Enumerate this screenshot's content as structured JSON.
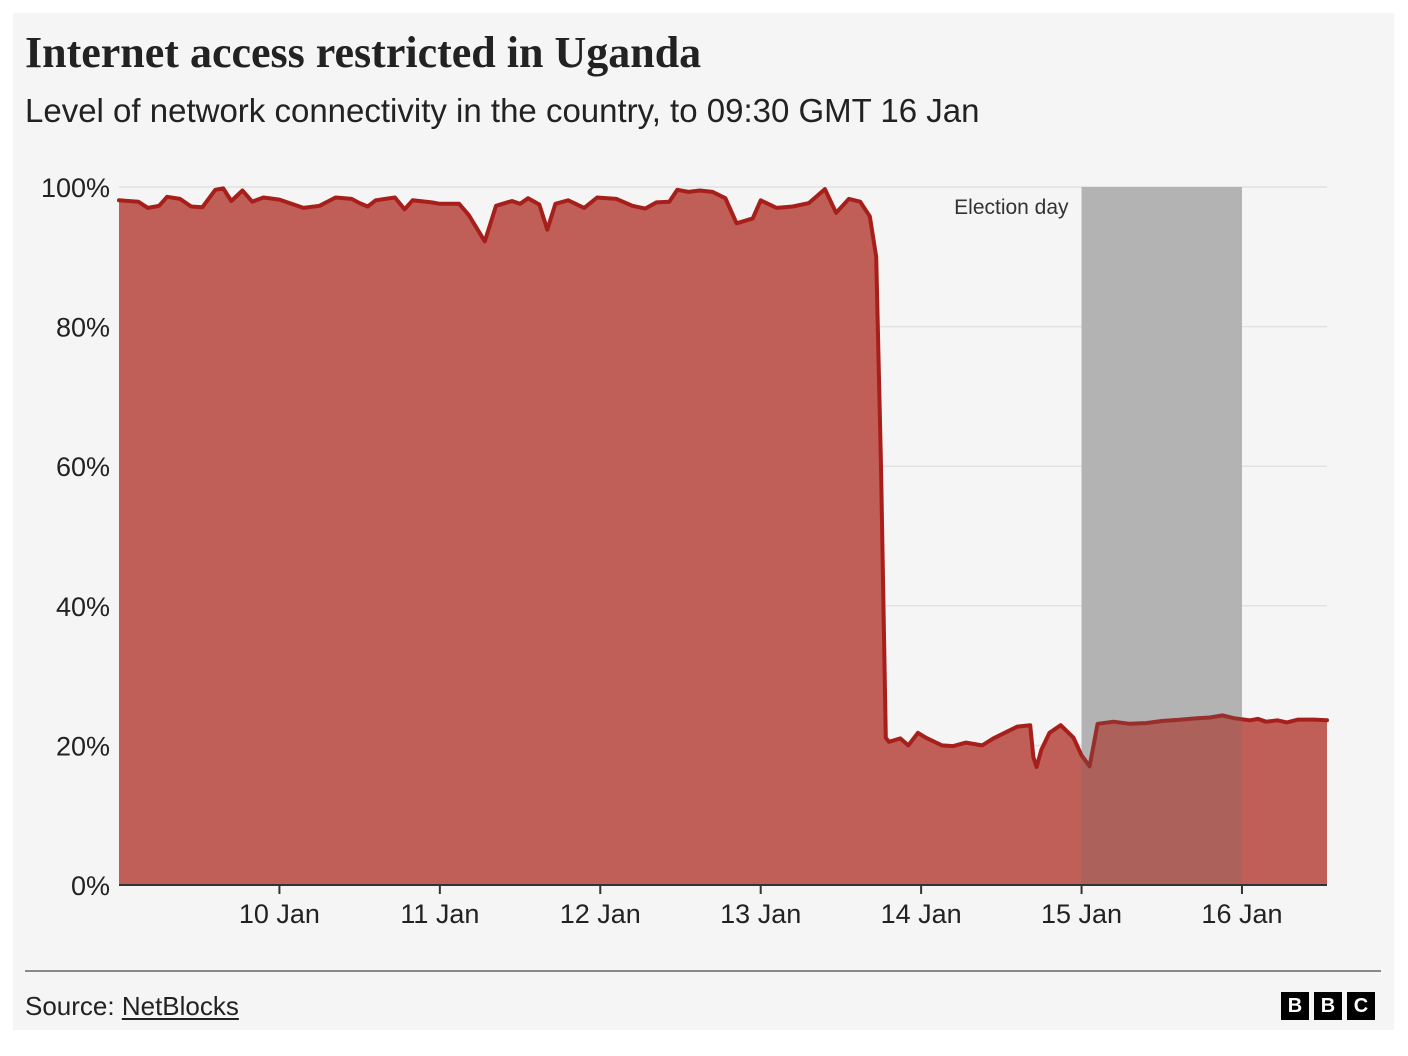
{
  "title": "Internet access restricted in Uganda",
  "subtitle": "Level of network connectivity in the country, to 09:30 GMT 16 Jan",
  "source": {
    "label": "Source: ",
    "link_text": "NetBlocks"
  },
  "logo": {
    "letters": [
      "B",
      "B",
      "C"
    ]
  },
  "colors": {
    "area_fill": "#bf5f57",
    "line": "#a71f1a",
    "highlight_band": "#c8c8c8",
    "background": "#f5f5f5"
  },
  "chart_data": {
    "type": "area",
    "title": "Internet access restricted in Uganda",
    "subtitle": "Level of network connectivity in the country, to 09:30 GMT 16 Jan",
    "xlabel": "",
    "ylabel": "",
    "unit": "%",
    "xlim": [
      9.0,
      16.53
    ],
    "ylim": [
      0,
      100
    ],
    "x_ticks": [
      {
        "x": 10,
        "label": "10 Jan"
      },
      {
        "x": 11,
        "label": "11 Jan"
      },
      {
        "x": 12,
        "label": "12 Jan"
      },
      {
        "x": 13,
        "label": "13 Jan"
      },
      {
        "x": 14,
        "label": "14 Jan"
      },
      {
        "x": 15,
        "label": "15 Jan"
      },
      {
        "x": 16,
        "label": "16 Jan"
      }
    ],
    "y_ticks": [
      {
        "y": 0,
        "label": "0%"
      },
      {
        "y": 20,
        "label": "20%"
      },
      {
        "y": 40,
        "label": "40%"
      },
      {
        "y": 60,
        "label": "60%"
      },
      {
        "y": 80,
        "label": "80%"
      },
      {
        "y": 100,
        "label": "100%"
      }
    ],
    "grid": true,
    "legend": "none",
    "highlight": {
      "x_start": 15.0,
      "x_end": 16.0,
      "label": "Election day"
    },
    "series": [
      {
        "values": [
          [
            9.0,
            98.1
          ],
          [
            9.12,
            97.9
          ],
          [
            9.18,
            97.0
          ],
          [
            9.25,
            97.3
          ],
          [
            9.3,
            98.6
          ],
          [
            9.38,
            98.3
          ],
          [
            9.45,
            97.2
          ],
          [
            9.52,
            97.1
          ],
          [
            9.6,
            99.6
          ],
          [
            9.65,
            99.8
          ],
          [
            9.7,
            98.0
          ],
          [
            9.77,
            99.5
          ],
          [
            9.83,
            97.9
          ],
          [
            9.9,
            98.5
          ],
          [
            10.0,
            98.2
          ],
          [
            10.1,
            97.4
          ],
          [
            10.15,
            97.0
          ],
          [
            10.25,
            97.3
          ],
          [
            10.35,
            98.5
          ],
          [
            10.45,
            98.3
          ],
          [
            10.5,
            97.7
          ],
          [
            10.55,
            97.2
          ],
          [
            10.6,
            98.1
          ],
          [
            10.72,
            98.5
          ],
          [
            10.78,
            96.8
          ],
          [
            10.83,
            98.1
          ],
          [
            10.95,
            97.8
          ],
          [
            11.0,
            97.6
          ],
          [
            11.12,
            97.6
          ],
          [
            11.18,
            96.0
          ],
          [
            11.28,
            92.2
          ],
          [
            11.35,
            97.3
          ],
          [
            11.45,
            98.0
          ],
          [
            11.5,
            97.6
          ],
          [
            11.55,
            98.4
          ],
          [
            11.62,
            97.5
          ],
          [
            11.67,
            93.9
          ],
          [
            11.72,
            97.6
          ],
          [
            11.8,
            98.1
          ],
          [
            11.9,
            97.0
          ],
          [
            11.98,
            98.5
          ],
          [
            12.1,
            98.3
          ],
          [
            12.2,
            97.3
          ],
          [
            12.28,
            96.9
          ],
          [
            12.35,
            97.8
          ],
          [
            12.43,
            97.9
          ],
          [
            12.48,
            99.6
          ],
          [
            12.55,
            99.3
          ],
          [
            12.62,
            99.5
          ],
          [
            12.7,
            99.3
          ],
          [
            12.78,
            98.4
          ],
          [
            12.85,
            94.8
          ],
          [
            12.95,
            95.5
          ],
          [
            13.0,
            98.1
          ],
          [
            13.1,
            97.0
          ],
          [
            13.2,
            97.2
          ],
          [
            13.3,
            97.7
          ],
          [
            13.4,
            99.7
          ],
          [
            13.47,
            96.3
          ],
          [
            13.55,
            98.3
          ],
          [
            13.62,
            97.9
          ],
          [
            13.68,
            95.8
          ],
          [
            13.72,
            90.0
          ],
          [
            13.75,
            60.0
          ],
          [
            13.78,
            21.1
          ],
          [
            13.8,
            20.5
          ],
          [
            13.87,
            21.0
          ],
          [
            13.92,
            20.0
          ],
          [
            13.98,
            21.8
          ],
          [
            14.03,
            21.1
          ],
          [
            14.13,
            20.0
          ],
          [
            14.2,
            19.9
          ],
          [
            14.28,
            20.4
          ],
          [
            14.38,
            20.0
          ],
          [
            14.45,
            21.0
          ],
          [
            14.6,
            22.7
          ],
          [
            14.68,
            22.9
          ],
          [
            14.7,
            18.3
          ],
          [
            14.72,
            16.9
          ],
          [
            14.75,
            19.4
          ],
          [
            14.8,
            21.8
          ],
          [
            14.87,
            22.9
          ],
          [
            14.95,
            21.1
          ],
          [
            15.0,
            18.6
          ],
          [
            15.05,
            17.0
          ],
          [
            15.1,
            23.1
          ],
          [
            15.2,
            23.4
          ],
          [
            15.3,
            23.1
          ],
          [
            15.4,
            23.2
          ],
          [
            15.5,
            23.5
          ],
          [
            15.62,
            23.7
          ],
          [
            15.72,
            23.9
          ],
          [
            15.8,
            24.0
          ],
          [
            15.88,
            24.3
          ],
          [
            15.95,
            23.9
          ],
          [
            16.05,
            23.6
          ],
          [
            16.1,
            23.8
          ],
          [
            16.15,
            23.4
          ],
          [
            16.22,
            23.6
          ],
          [
            16.28,
            23.3
          ],
          [
            16.35,
            23.7
          ],
          [
            16.45,
            23.7
          ],
          [
            16.53,
            23.6
          ]
        ]
      }
    ]
  }
}
